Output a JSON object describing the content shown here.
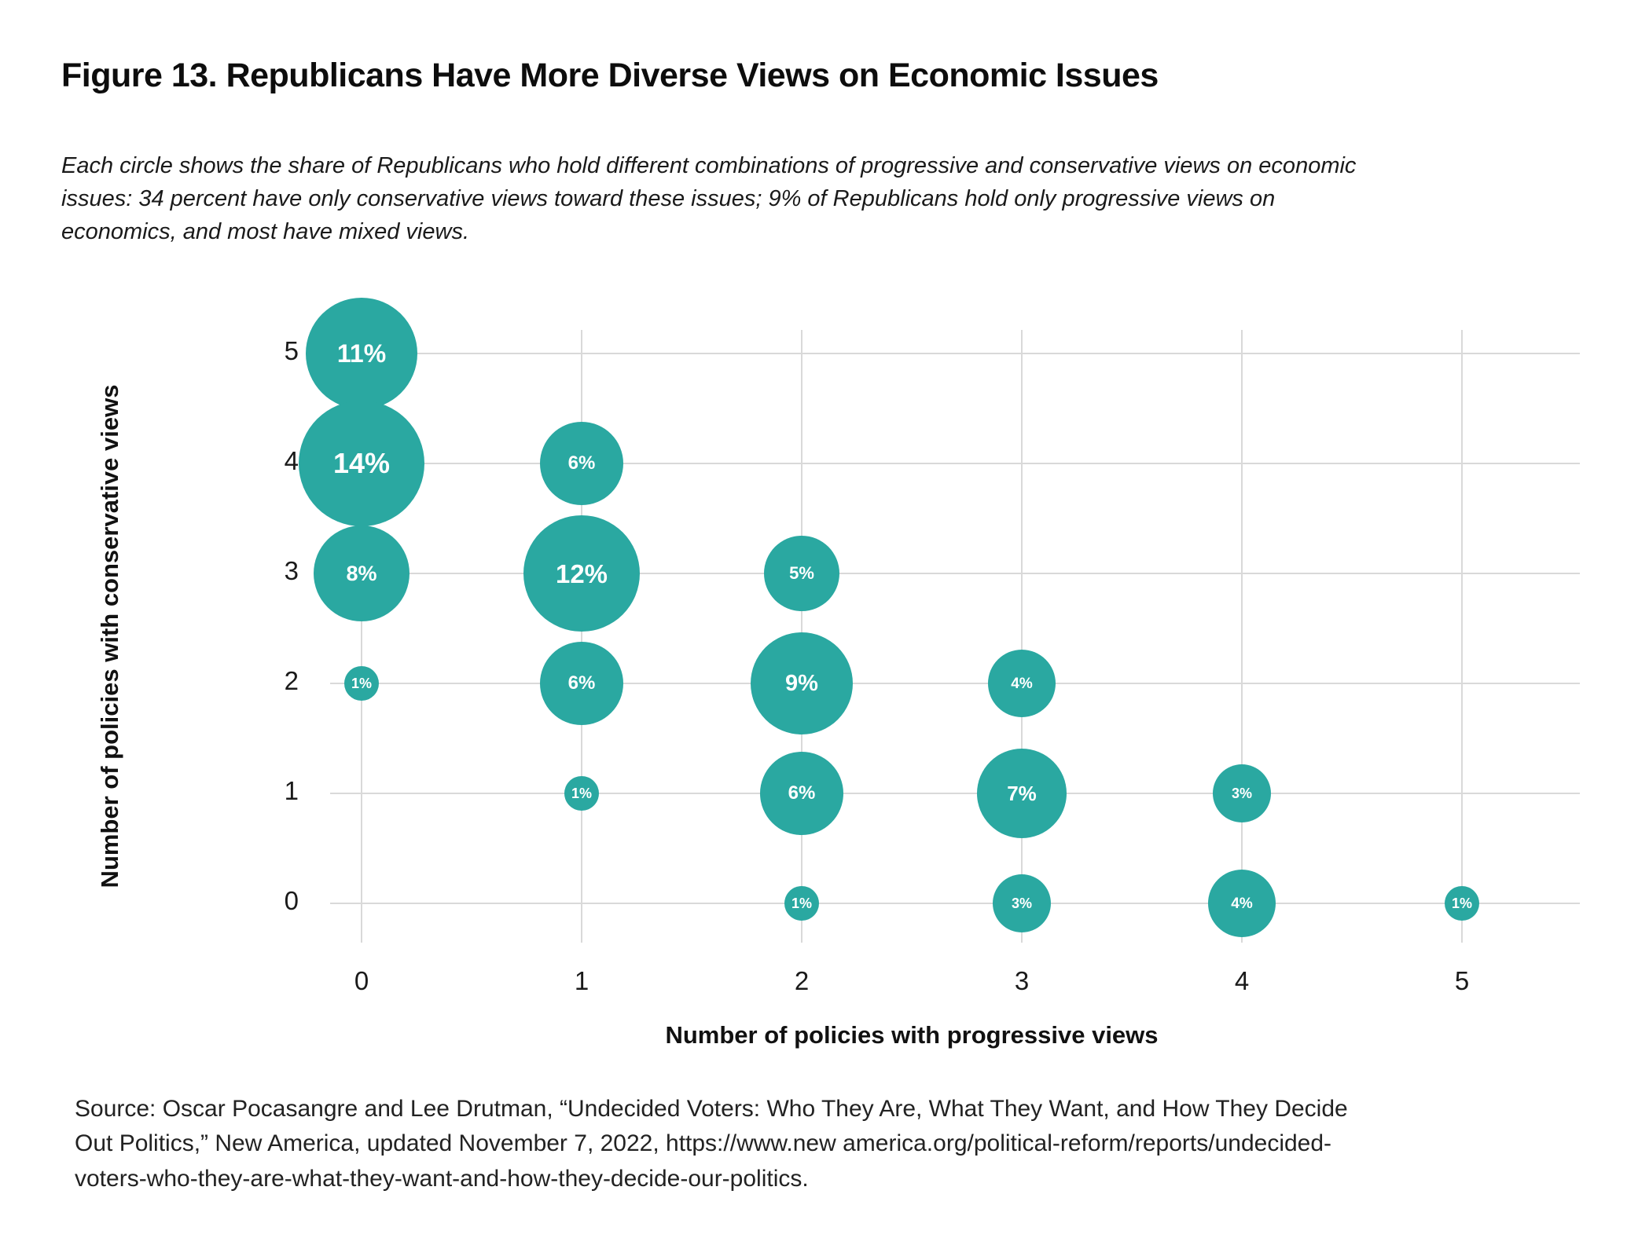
{
  "figure": {
    "title": "Figure 13. Republicans Have More Diverse Views on Economic Issues",
    "subtitle_lines": [
      "Each circle shows the share of Republicans who hold different combinations of progressive and conservative views on economic",
      "issues: 34 percent have only conservative views toward these issues; 9% of Republicans hold only progressive views on",
      "economics, and most have mixed views."
    ],
    "source_lines": [
      "Source: Oscar Pocasangre and Lee Drutman, “Undecided Voters: Who They Are, What They Want, and How They Decide",
      "Out Politics,” New America, updated November 7, 2022, https://www.new america.org/political-reform/reports/undecided-",
      "voters-who-they-are-what-they-want-and-how-they-decide-our-politics."
    ]
  },
  "chart_data": {
    "type": "scatter",
    "subtype": "bubble",
    "title": "Figure 13. Republicans Have More Diverse Views on Economic Issues",
    "xlabel": "Number of policies with progressive views",
    "ylabel": "Number of policies with conservative views",
    "x_ticks": [
      0,
      1,
      2,
      3,
      4,
      5
    ],
    "y_ticks": [
      0,
      1,
      2,
      3,
      4,
      5
    ],
    "xlim": [
      -0.15,
      5.55
    ],
    "ylim": [
      -0.35,
      5.25
    ],
    "grid": true,
    "legend": false,
    "bubble_color": "#2AA8A1",
    "bubble_label_color": "#FFFFFF",
    "gridline_color": "#D9D9D9",
    "points": [
      {
        "x": 0,
        "y": 5,
        "value": 11,
        "label": "11%"
      },
      {
        "x": 0,
        "y": 4,
        "value": 14,
        "label": "14%"
      },
      {
        "x": 0,
        "y": 3,
        "value": 8,
        "label": "8%"
      },
      {
        "x": 0,
        "y": 2,
        "value": 1,
        "label": "1%"
      },
      {
        "x": 1,
        "y": 4,
        "value": 6,
        "label": "6%"
      },
      {
        "x": 1,
        "y": 3,
        "value": 12,
        "label": "12%"
      },
      {
        "x": 1,
        "y": 2,
        "value": 6,
        "label": "6%"
      },
      {
        "x": 1,
        "y": 1,
        "value": 1,
        "label": "1%"
      },
      {
        "x": 2,
        "y": 3,
        "value": 5,
        "label": "5%"
      },
      {
        "x": 2,
        "y": 2,
        "value": 9,
        "label": "9%"
      },
      {
        "x": 2,
        "y": 1,
        "value": 6,
        "label": "6%"
      },
      {
        "x": 2,
        "y": 0,
        "value": 1,
        "label": "1%"
      },
      {
        "x": 3,
        "y": 2,
        "value": 4,
        "label": "4%"
      },
      {
        "x": 3,
        "y": 1,
        "value": 7,
        "label": "7%"
      },
      {
        "x": 3,
        "y": 0,
        "value": 3,
        "label": "3%"
      },
      {
        "x": 4,
        "y": 1,
        "value": 3,
        "label": "3%"
      },
      {
        "x": 4,
        "y": 0,
        "value": 4,
        "label": "4%"
      },
      {
        "x": 5,
        "y": 0,
        "value": 1,
        "label": "1%"
      }
    ]
  }
}
